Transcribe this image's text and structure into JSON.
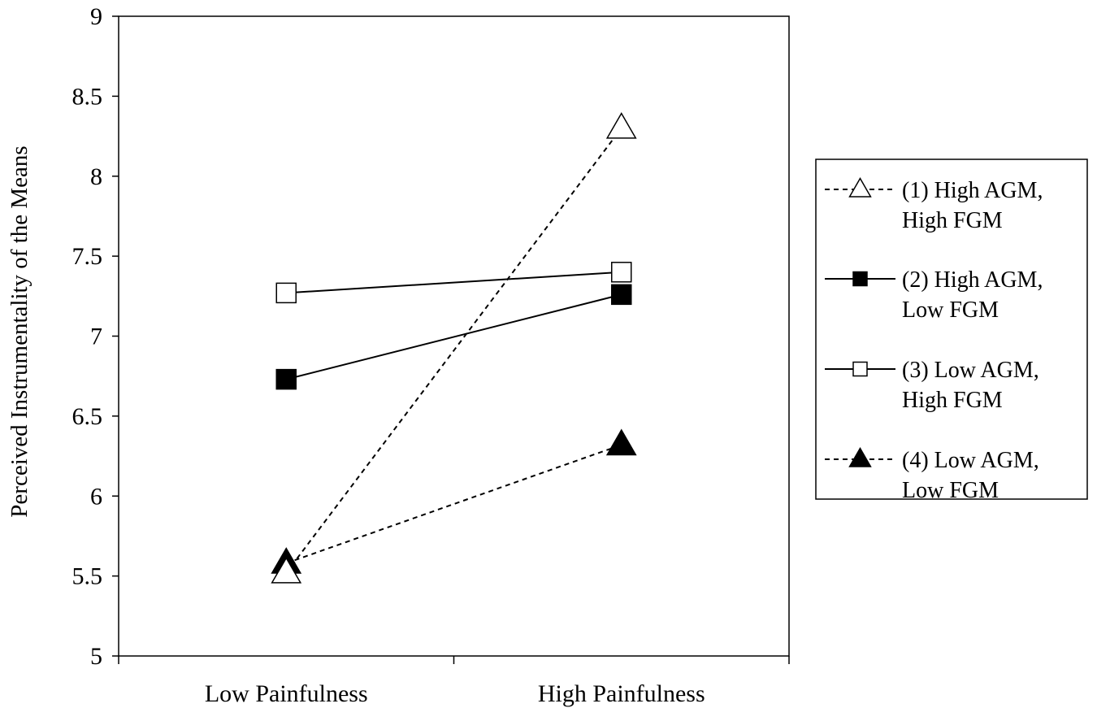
{
  "chart_data": {
    "type": "line",
    "title": "",
    "xlabel": "",
    "ylabel": "Perceived Instrumentality  of the Means",
    "categories": [
      "Low Painfulness",
      "High Painfulness"
    ],
    "ylim": [
      5,
      9
    ],
    "yticks": [
      "5",
      "5.5",
      "6",
      "6.5",
      "7",
      "7.5",
      "8",
      "8.5",
      "9"
    ],
    "grid": false,
    "legend_position": "right",
    "series": [
      {
        "name": "(1) High AGM, High FGM",
        "legend_lines": [
          "(1) High AGM,",
          "High FGM"
        ],
        "values": [
          5.52,
          8.3
        ],
        "line_style": "dashed",
        "marker": "triangle-open"
      },
      {
        "name": "(2) High AGM, Low FGM",
        "legend_lines": [
          "(2) High AGM,",
          "Low FGM"
        ],
        "values": [
          6.73,
          7.26
        ],
        "line_style": "solid",
        "marker": "square-filled"
      },
      {
        "name": "(3) Low AGM, High FGM",
        "legend_lines": [
          "(3) Low AGM,",
          "High FGM"
        ],
        "values": [
          7.27,
          7.4
        ],
        "line_style": "solid",
        "marker": "square-open"
      },
      {
        "name": "(4) Low AGM, Low FGM",
        "legend_lines": [
          "(4) Low AGM,",
          "Low FGM"
        ],
        "values": [
          5.58,
          6.32
        ],
        "line_style": "dashed",
        "marker": "triangle-filled"
      }
    ]
  }
}
